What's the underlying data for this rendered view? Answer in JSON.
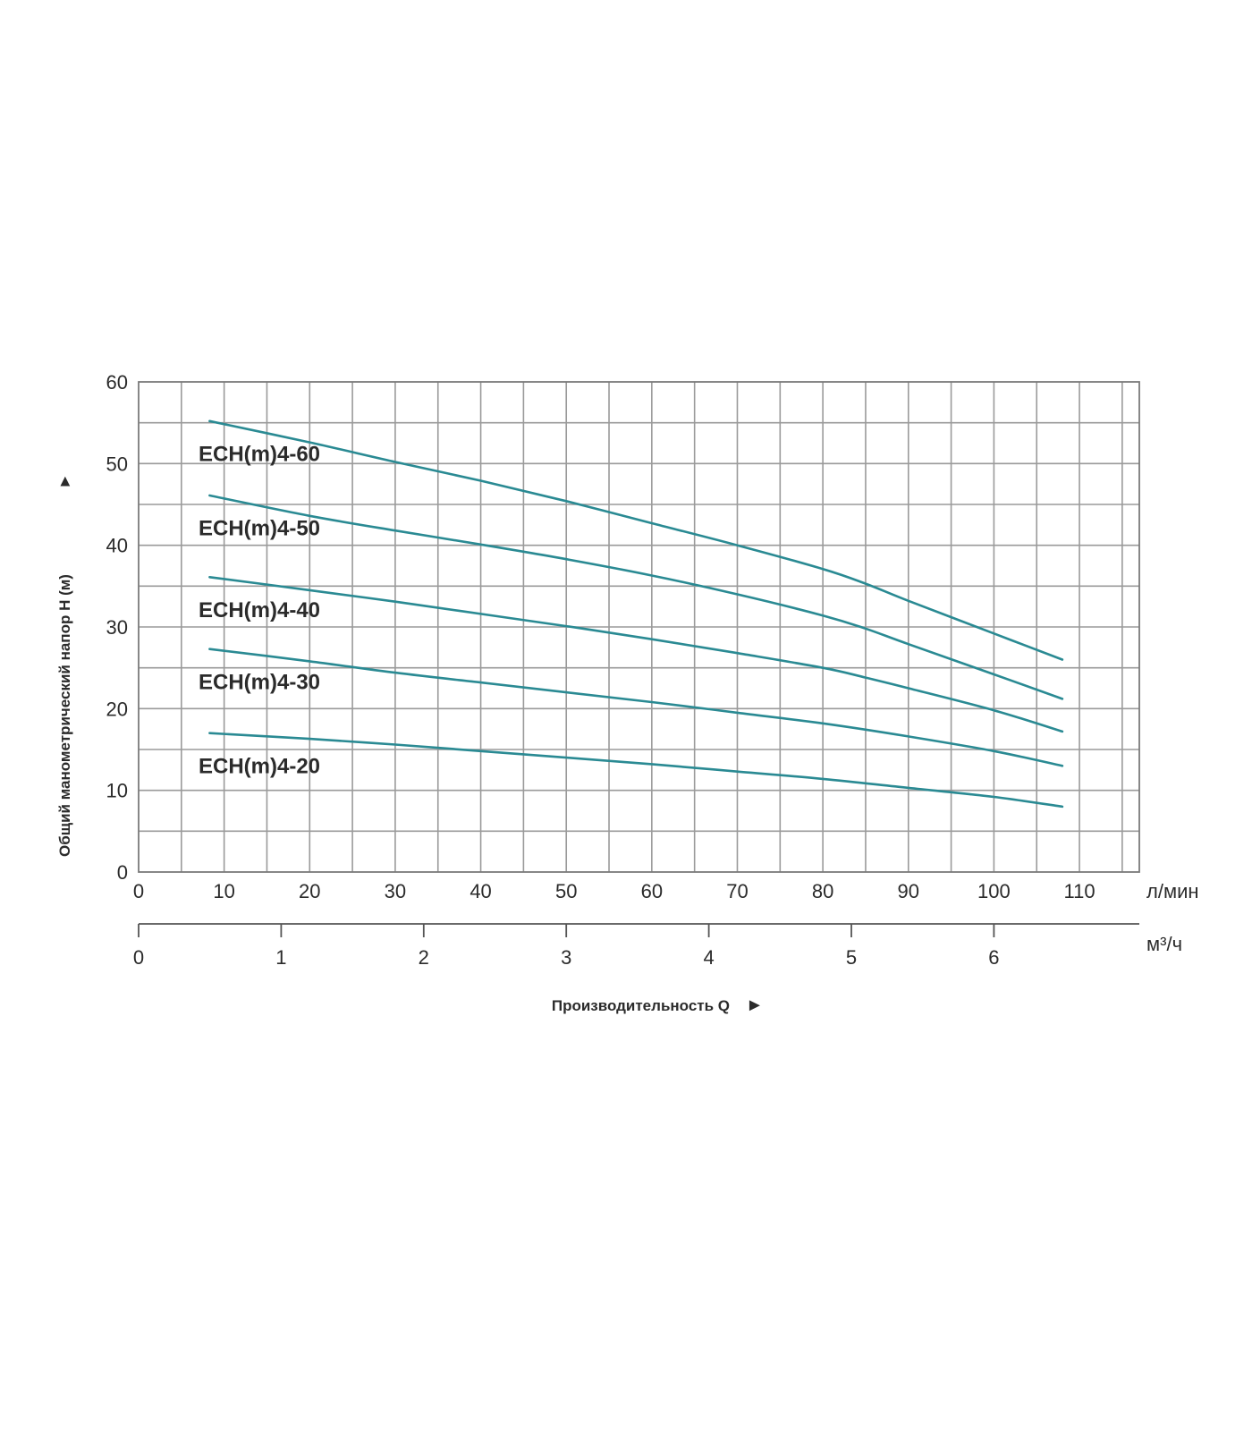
{
  "colors": {
    "curve": "#2a8a93",
    "grid": "#9a9a9a",
    "text": "#2b2b2b"
  },
  "chart_data": {
    "type": "line",
    "title": "",
    "xlabel": "Производительность Q",
    "ylabel": "Общий манометрический напор H (м)",
    "x_unit": "л/мин",
    "x2_unit": "м³/ч",
    "x_arrow": "►",
    "y_arrow": "►",
    "xlim": [
      0,
      117
    ],
    "ylim": [
      0,
      60
    ],
    "x_ticks": [
      0,
      10,
      20,
      30,
      40,
      50,
      60,
      70,
      80,
      90,
      100,
      110
    ],
    "x_grid_step": 5,
    "y_ticks": [
      0,
      10,
      20,
      30,
      40,
      50,
      60
    ],
    "y_grid_step": 5,
    "x2_ticks": [
      0,
      1,
      2,
      3,
      4,
      5,
      6
    ],
    "grid": true,
    "series": [
      {
        "name": "ECH(m)4-60",
        "x": [
          8.3,
          20,
          30,
          40,
          50,
          60,
          70,
          80,
          85,
          90,
          100,
          108
        ],
        "y": [
          55.2,
          52.6,
          50.2,
          47.9,
          45.4,
          42.7,
          40.0,
          37.1,
          35.3,
          33.2,
          29.2,
          26.0
        ]
      },
      {
        "name": "ECH(m)4-50",
        "x": [
          8.3,
          20,
          30,
          40,
          50,
          60,
          70,
          80,
          85,
          90,
          100,
          108
        ],
        "y": [
          46.1,
          43.6,
          41.8,
          40.1,
          38.3,
          36.3,
          34.0,
          31.4,
          29.8,
          27.9,
          24.2,
          21.2
        ]
      },
      {
        "name": "ECH(m)4-40",
        "x": [
          8.3,
          20,
          30,
          40,
          50,
          60,
          70,
          80,
          85,
          90,
          100,
          108
        ],
        "y": [
          36.1,
          34.5,
          33.1,
          31.6,
          30.1,
          28.5,
          26.8,
          25.0,
          23.8,
          22.5,
          19.8,
          17.2
        ]
      },
      {
        "name": "ECH(m)4-30",
        "x": [
          8.3,
          20,
          30,
          40,
          50,
          60,
          70,
          80,
          90,
          100,
          108
        ],
        "y": [
          27.3,
          25.8,
          24.4,
          23.2,
          22.0,
          20.8,
          19.5,
          18.2,
          16.6,
          14.8,
          13.0
        ]
      },
      {
        "name": "ECH(m)4-20",
        "x": [
          8.3,
          20,
          30,
          40,
          50,
          60,
          70,
          80,
          90,
          100,
          108
        ],
        "y": [
          17.0,
          16.3,
          15.6,
          14.8,
          14.0,
          13.2,
          12.3,
          11.4,
          10.3,
          9.2,
          8.0
        ]
      }
    ]
  }
}
